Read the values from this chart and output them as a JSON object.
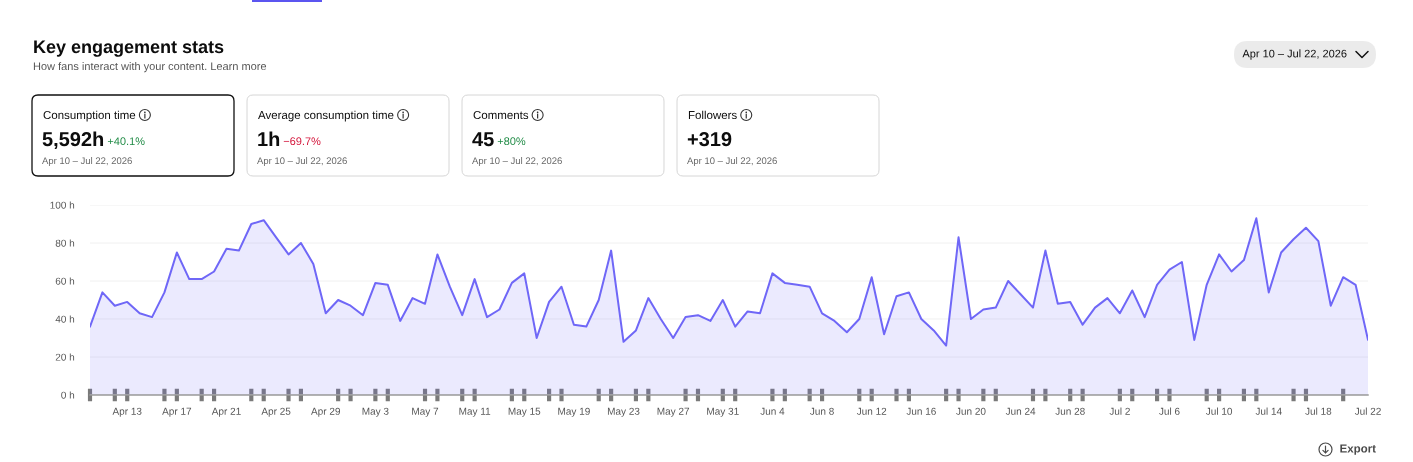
{
  "chart_data": [
    {
      "type": "other",
      "title": "Key engagement stats",
      "subtitle": "How fans interact with your content. Learn more",
      "annotations": [
        "Apr 10 – Jul 22, 2026"
      ]
    },
    {
      "type": "other",
      "title": "Consumption time",
      "annotations": [
        "5,592h",
        "+40.1%",
        "Apr 10 – Jul 22, 2026"
      ],
      "color": "#1e8a44"
    },
    {
      "type": "other",
      "title": "Average consumption time",
      "annotations": [
        "1h",
        "−69.7%",
        "Apr 10 – Jul 22, 2026"
      ],
      "color": "#d4173c"
    },
    {
      "type": "other",
      "title": "Comments",
      "annotations": [
        "45",
        "+80%",
        "Apr 10 – Jul 22, 2026"
      ],
      "color": "#1e8a44"
    },
    {
      "type": "other",
      "title": "Followers",
      "annotations": [
        "+319",
        "Apr 10 – Jul 22, 2026"
      ]
    },
    {
      "type": "area",
      "x": [
        "2026-04-10",
        "2026-04-11",
        "2026-04-12",
        "2026-04-13",
        "2026-04-14",
        "2026-04-15",
        "2026-04-16",
        "2026-04-17",
        "2026-04-18",
        "2026-04-19",
        "2026-04-20",
        "2026-04-21",
        "2026-04-22",
        "2026-04-23",
        "2026-04-24",
        "2026-04-25",
        "2026-04-26",
        "2026-04-27",
        "2026-04-28",
        "2026-04-29",
        "2026-04-30",
        "2026-05-01",
        "2026-05-02",
        "2026-05-03",
        "2026-05-04",
        "2026-05-05",
        "2026-05-06",
        "2026-05-07",
        "2026-05-08",
        "2026-05-09",
        "2026-05-10",
        "2026-05-11",
        "2026-05-12",
        "2026-05-13",
        "2026-05-14",
        "2026-05-15",
        "2026-05-16",
        "2026-05-17",
        "2026-05-18",
        "2026-05-19",
        "2026-05-20",
        "2026-05-21",
        "2026-05-22",
        "2026-05-23",
        "2026-05-24",
        "2026-05-25",
        "2026-05-26",
        "2026-05-27",
        "2026-05-28",
        "2026-05-29",
        "2026-05-30",
        "2026-05-31",
        "2026-06-01",
        "2026-06-02",
        "2026-06-03",
        "2026-06-04",
        "2026-06-05",
        "2026-06-06",
        "2026-06-07",
        "2026-06-08",
        "2026-06-09",
        "2026-06-10",
        "2026-06-11",
        "2026-06-12",
        "2026-06-13",
        "2026-06-14",
        "2026-06-15",
        "2026-06-16",
        "2026-06-17",
        "2026-06-18",
        "2026-06-19",
        "2026-06-20",
        "2026-06-21",
        "2026-06-22",
        "2026-06-23",
        "2026-06-24",
        "2026-06-25",
        "2026-06-26",
        "2026-06-27",
        "2026-06-28",
        "2026-06-29",
        "2026-06-30",
        "2026-07-01",
        "2026-07-02",
        "2026-07-03",
        "2026-07-04",
        "2026-07-05",
        "2026-07-06",
        "2026-07-07",
        "2026-07-08",
        "2026-07-09",
        "2026-07-10",
        "2026-07-11",
        "2026-07-12",
        "2026-07-13",
        "2026-07-14",
        "2026-07-15",
        "2026-07-16",
        "2026-07-17",
        "2026-07-18",
        "2026-07-19",
        "2026-07-20",
        "2026-07-21",
        "2026-07-22"
      ],
      "series": [
        {
          "color": "#6f67f7",
          "values": [
            36,
            54,
            47,
            49,
            43,
            41,
            54,
            75,
            61,
            61,
            65,
            77,
            76,
            90,
            92,
            83,
            74,
            80,
            69,
            43,
            50,
            47,
            42,
            59,
            58,
            39,
            51,
            48,
            74,
            57,
            42,
            61,
            41,
            45,
            59,
            64,
            30,
            49,
            57,
            37,
            36,
            50,
            76,
            28,
            34,
            51,
            40,
            30,
            41,
            42,
            39,
            50,
            36,
            44,
            43,
            64,
            59,
            58,
            57,
            43,
            39,
            33,
            40,
            62,
            32,
            52,
            54,
            40,
            34,
            26,
            83,
            40,
            45,
            46,
            60,
            53,
            46,
            76,
            48,
            49,
            37,
            46,
            51,
            43,
            55,
            41,
            58,
            66,
            70,
            29,
            58,
            74,
            65,
            71,
            93,
            54,
            75,
            82,
            88,
            81,
            47,
            62,
            58,
            29
          ]
        }
      ],
      "xlim": [
        "2026-04-10",
        "2026-07-22"
      ],
      "xticks": [
        {
          "value": "2026-04-13",
          "label": "Apr 13"
        },
        {
          "value": "2026-04-17",
          "label": "Apr 17"
        },
        {
          "value": "2026-04-21",
          "label": "Apr 21"
        },
        {
          "value": "2026-04-25",
          "label": "Apr 25"
        },
        {
          "value": "2026-04-29",
          "label": "Apr 29"
        },
        {
          "value": "2026-05-03",
          "label": "May 3"
        },
        {
          "value": "2026-05-07",
          "label": "May 7"
        },
        {
          "value": "2026-05-11",
          "label": "May 11"
        },
        {
          "value": "2026-05-15",
          "label": "May 15"
        },
        {
          "value": "2026-05-19",
          "label": "May 19"
        },
        {
          "value": "2026-05-23",
          "label": "May 23"
        },
        {
          "value": "2026-05-27",
          "label": "May 27"
        },
        {
          "value": "2026-05-31",
          "label": "May 31"
        },
        {
          "value": "2026-06-04",
          "label": "Jun 4"
        },
        {
          "value": "2026-06-08",
          "label": "Jun 8"
        },
        {
          "value": "2026-06-12",
          "label": "Jun 12"
        },
        {
          "value": "2026-06-16",
          "label": "Jun 16"
        },
        {
          "value": "2026-06-20",
          "label": "Jun 20"
        },
        {
          "value": "2026-06-24",
          "label": "Jun 24"
        },
        {
          "value": "2026-06-28",
          "label": "Jun 28"
        },
        {
          "value": "2026-07-02",
          "label": "Jul 2"
        },
        {
          "value": "2026-07-06",
          "label": "Jul 6"
        },
        {
          "value": "2026-07-10",
          "label": "Jul 10"
        },
        {
          "value": "2026-07-14",
          "label": "Jul 14"
        },
        {
          "value": "2026-07-18",
          "label": "Jul 18"
        },
        {
          "value": "2026-07-22",
          "label": "Jul 22"
        },
        {
          "value": "2026-04-10",
          "label": null
        },
        {
          "value": "2026-04-12",
          "label": null
        },
        {
          "value": "2026-04-13",
          "label": null
        },
        {
          "value": "2026-04-16",
          "label": null
        },
        {
          "value": "2026-04-17",
          "label": null
        },
        {
          "value": "2026-04-19",
          "label": null
        },
        {
          "value": "2026-04-20",
          "label": null
        },
        {
          "value": "2026-04-23",
          "label": null
        },
        {
          "value": "2026-04-24",
          "label": null
        },
        {
          "value": "2026-04-26",
          "label": null
        },
        {
          "value": "2026-04-27",
          "label": null
        },
        {
          "value": "2026-04-30",
          "label": null
        },
        {
          "value": "2026-05-01",
          "label": null
        },
        {
          "value": "2026-05-03",
          "label": null
        },
        {
          "value": "2026-05-04",
          "label": null
        },
        {
          "value": "2026-05-07",
          "label": null
        },
        {
          "value": "2026-05-08",
          "label": null
        },
        {
          "value": "2026-05-10",
          "label": null
        },
        {
          "value": "2026-05-11",
          "label": null
        },
        {
          "value": "2026-05-14",
          "label": null
        },
        {
          "value": "2026-05-15",
          "label": null
        },
        {
          "value": "2026-05-17",
          "label": null
        },
        {
          "value": "2026-05-18",
          "label": null
        },
        {
          "value": "2026-05-21",
          "label": null
        },
        {
          "value": "2026-05-22",
          "label": null
        },
        {
          "value": "2026-05-24",
          "label": null
        },
        {
          "value": "2026-05-25",
          "label": null
        },
        {
          "value": "2026-05-28",
          "label": null
        },
        {
          "value": "2026-05-29",
          "label": null
        },
        {
          "value": "2026-05-31",
          "label": null
        },
        {
          "value": "2026-06-01",
          "label": null
        },
        {
          "value": "2026-06-04",
          "label": null
        },
        {
          "value": "2026-06-05",
          "label": null
        },
        {
          "value": "2026-06-07",
          "label": null
        },
        {
          "value": "2026-06-08",
          "label": null
        },
        {
          "value": "2026-06-11",
          "label": null
        },
        {
          "value": "2026-06-12",
          "label": null
        },
        {
          "value": "2026-06-14",
          "label": null
        },
        {
          "value": "2026-06-15",
          "label": null
        },
        {
          "value": "2026-06-18",
          "label": null
        },
        {
          "value": "2026-06-19",
          "label": null
        },
        {
          "value": "2026-06-21",
          "label": null
        },
        {
          "value": "2026-06-22",
          "label": null
        },
        {
          "value": "2026-06-25",
          "label": null
        },
        {
          "value": "2026-06-26",
          "label": null
        },
        {
          "value": "2026-06-28",
          "label": null
        },
        {
          "value": "2026-06-29",
          "label": null
        },
        {
          "value": "2026-07-02",
          "label": null
        },
        {
          "value": "2026-07-03",
          "label": null
        },
        {
          "value": "2026-07-05",
          "label": null
        },
        {
          "value": "2026-07-06",
          "label": null
        },
        {
          "value": "2026-07-09",
          "label": null
        },
        {
          "value": "2026-07-10",
          "label": null
        },
        {
          "value": "2026-07-12",
          "label": null
        },
        {
          "value": "2026-07-13",
          "label": null
        },
        {
          "value": "2026-07-16",
          "label": null
        },
        {
          "value": "2026-07-17",
          "label": null
        },
        {
          "value": "2026-07-20",
          "label": null
        }
      ],
      "ylim": [
        0,
        100
      ],
      "yticks": [
        {
          "value": 0,
          "label": "0 h"
        },
        {
          "value": 20,
          "label": "20 h"
        },
        {
          "value": 40,
          "label": "40 h"
        },
        {
          "value": 60,
          "label": "60 h"
        },
        {
          "value": 80,
          "label": "80 h"
        },
        {
          "value": 100,
          "label": "100 h"
        }
      ],
      "grid": "y",
      "annotations": [
        "Export"
      ]
    }
  ]
}
